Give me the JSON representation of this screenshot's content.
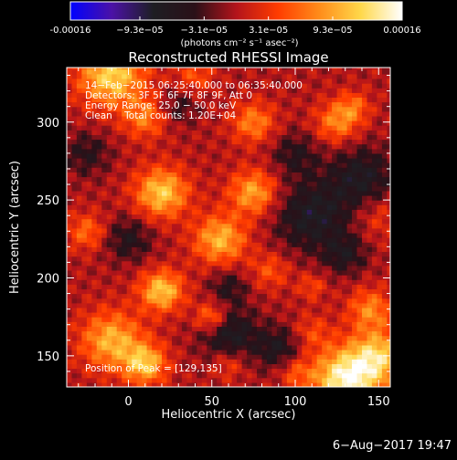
{
  "colors": {
    "background": "#000000",
    "text": "#ffffff",
    "colorbar_stops": [
      "#0000ff",
      "#4b12a6",
      "#1e1e23",
      "#2a1018",
      "#b3141b",
      "#ff3c00",
      "#ff8c1a",
      "#ffd84a",
      "#ffffff"
    ]
  },
  "colorbar": {
    "tick_labels": [
      "-0.00016",
      "−9.3e−05",
      "−3.1e−05",
      "3.1e−05",
      "9.3e−05",
      "0.00016"
    ],
    "tick_values": [
      -0.00016,
      -9.3e-05,
      -3.1e-05,
      3.1e-05,
      9.3e-05,
      0.00016
    ],
    "range": [
      -0.00016,
      0.00016
    ],
    "unit_label": "(photons cm⁻² s⁻¹ asec⁻²)"
  },
  "info": {
    "time": "14−Feb−2015 06:25:40.000 to 06:35:40.000",
    "detectors": "Detectors: 3F 5F 6F 7F 8F 9F, Att 0",
    "energy": "Energy Range: 25.0 − 50.0 keV",
    "method": "Clean    Total counts: 1.20E+04",
    "peak": "Position of Peak = [129,135]"
  },
  "footer": {
    "date": "6−Aug−2017 19:47"
  },
  "chart_data": {
    "type": "heatmap",
    "title": "Reconstructed RHESSI Image",
    "xlabel": "Heliocentric X (arcsec)",
    "ylabel": "Heliocentric Y (arcsec)",
    "xlim": [
      -37,
      157
    ],
    "ylim": [
      130,
      335
    ],
    "xticks": [
      0,
      50,
      100,
      150
    ],
    "yticks": [
      150,
      200,
      250,
      300
    ],
    "peak": [
      129,
      135
    ],
    "sources": [
      {
        "x": 130,
        "y": 135,
        "sigma": 14,
        "amp": 1.1
      },
      {
        "x": 150,
        "y": 150,
        "sigma": 12,
        "amp": 0.8
      },
      {
        "x": 145,
        "y": 180,
        "sigma": 9,
        "amp": 0.55
      },
      {
        "x": -10,
        "y": 330,
        "sigma": 14,
        "amp": 0.9
      },
      {
        "x": 10,
        "y": 303,
        "sigma": 9,
        "amp": 0.5
      },
      {
        "x": 20,
        "y": 255,
        "sigma": 11,
        "amp": 0.85
      },
      {
        "x": 55,
        "y": 225,
        "sigma": 11,
        "amp": 0.75
      },
      {
        "x": 75,
        "y": 255,
        "sigma": 10,
        "amp": 0.7
      },
      {
        "x": 75,
        "y": 300,
        "sigma": 9,
        "amp": 0.55
      },
      {
        "x": 20,
        "y": 192,
        "sigma": 9,
        "amp": 0.85
      },
      {
        "x": 50,
        "y": 175,
        "sigma": 7,
        "amp": 0.6
      },
      {
        "x": -10,
        "y": 160,
        "sigma": 13,
        "amp": 0.75
      },
      {
        "x": 10,
        "y": 145,
        "sigma": 9,
        "amp": 0.8
      },
      {
        "x": 125,
        "y": 300,
        "sigma": 9,
        "amp": 0.55
      },
      {
        "x": 135,
        "y": 310,
        "sigma": 7,
        "amp": 0.4
      },
      {
        "x": 85,
        "y": 205,
        "sigma": 8,
        "amp": 0.35
      },
      {
        "x": 110,
        "y": 195,
        "sigma": 6,
        "amp": 0.3
      },
      {
        "x": -25,
        "y": 230,
        "sigma": 8,
        "amp": 0.45
      },
      {
        "x": 100,
        "y": 140,
        "sigma": 7,
        "amp": 0.35
      },
      {
        "x": 60,
        "y": 145,
        "sigma": 7,
        "amp": 0.3
      },
      {
        "x": 40,
        "y": 330,
        "sigma": 8,
        "amp": 0.35
      },
      {
        "x": 150,
        "y": 240,
        "sigma": 10,
        "amp": 0.25
      },
      {
        "x": 110,
        "y": 165,
        "sigma": 8,
        "amp": 0.3
      }
    ],
    "sinks": [
      {
        "x": 110,
        "y": 240,
        "sigma": 16,
        "amp": 0.55
      },
      {
        "x": 140,
        "y": 265,
        "sigma": 14,
        "amp": 0.5
      },
      {
        "x": 60,
        "y": 165,
        "sigma": 12,
        "amp": 0.55
      },
      {
        "x": 90,
        "y": 155,
        "sigma": 10,
        "amp": 0.45
      },
      {
        "x": 0,
        "y": 225,
        "sigma": 10,
        "amp": 0.4
      },
      {
        "x": 60,
        "y": 195,
        "sigma": 8,
        "amp": 0.35
      },
      {
        "x": -25,
        "y": 280,
        "sigma": 10,
        "amp": 0.35
      },
      {
        "x": 100,
        "y": 280,
        "sigma": 10,
        "amp": 0.35
      },
      {
        "x": 30,
        "y": 310,
        "sigma": 8,
        "amp": 0.3
      },
      {
        "x": 130,
        "y": 215,
        "sigma": 9,
        "amp": 0.4
      }
    ]
  }
}
